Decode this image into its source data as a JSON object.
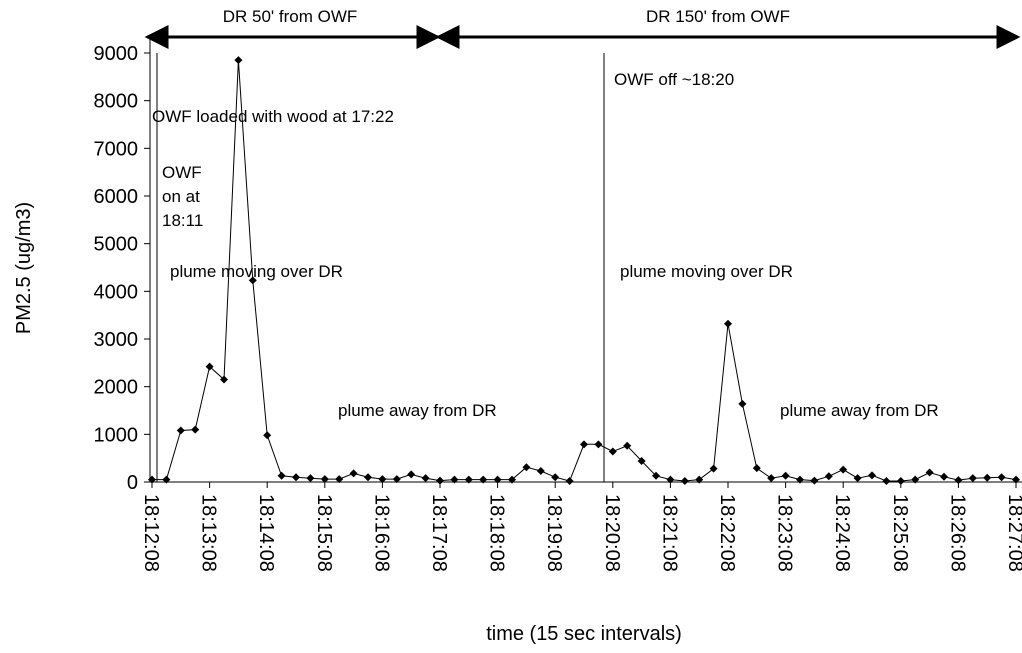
{
  "chart_data": {
    "type": "line",
    "top_labels": [
      "DR 50' from OWF",
      "DR 150' from OWF"
    ],
    "annotations": [
      "OWF loaded with wood at 17:22",
      "OWF",
      "on at",
      "18:11",
      "plume moving over DR",
      "plume away from DR",
      "OWF off ~18:20",
      "plume moving over DR",
      "plume away from DR"
    ],
    "y_label": "PM2.5 (ug/m3)",
    "x_label": "time (15 sec intervals)",
    "categories": [
      "18:12:08",
      null,
      null,
      null,
      "18:13:08",
      null,
      null,
      null,
      "18:14:08",
      null,
      null,
      null,
      "18:15:08",
      null,
      null,
      null,
      "18:16:08",
      null,
      null,
      null,
      "18:17:08",
      null,
      null,
      null,
      "18:18:08",
      null,
      null,
      null,
      "18:19:08",
      null,
      null,
      null,
      "18:20:08",
      null,
      null,
      null,
      "18:21:08",
      null,
      null,
      null,
      "18:22:08",
      null,
      null,
      null,
      "18:23:08",
      null,
      null,
      null,
      "18:24:08",
      null,
      null,
      null,
      "18:25:08",
      null,
      null,
      null,
      "18:26:08",
      null,
      null,
      null,
      "18:27:08"
    ],
    "series": [
      {
        "name": "PM2.5",
        "color": "#000000",
        "values": [
          50,
          50,
          1080,
          1100,
          2420,
          2150,
          8850,
          4230,
          980,
          130,
          100,
          80,
          60,
          60,
          180,
          100,
          60,
          60,
          160,
          80,
          30,
          50,
          50,
          50,
          50,
          50,
          310,
          230,
          100,
          20,
          790,
          790,
          640,
          760,
          440,
          130,
          50,
          20,
          50,
          280,
          3320,
          1640,
          290,
          80,
          130,
          50,
          30,
          120,
          260,
          80,
          140,
          20,
          20,
          50,
          200,
          110,
          40,
          80,
          90,
          100,
          50
        ]
      }
    ],
    "ylim": [
      0,
      9000
    ],
    "yticks": [
      0,
      1000,
      2000,
      3000,
      4000,
      5000,
      6000,
      7000,
      8000,
      9000
    ],
    "grid": false
  }
}
